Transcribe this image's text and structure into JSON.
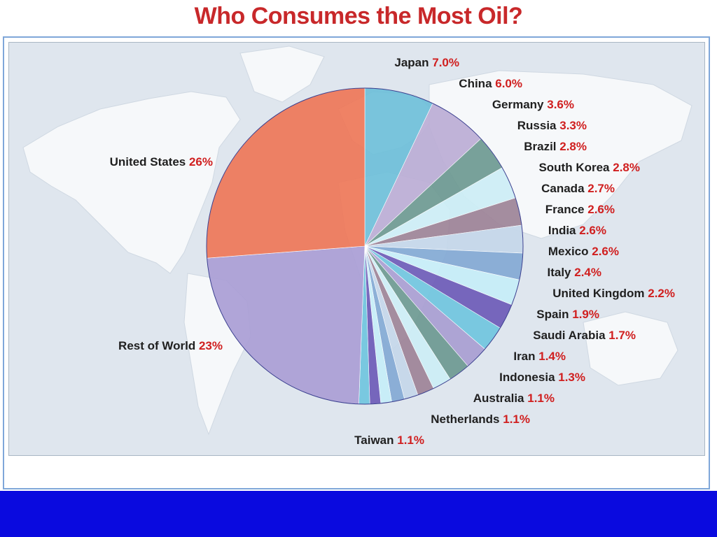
{
  "title": "Who Consumes the Most Oil?",
  "colors": {
    "title": "#c8282a",
    "map_background": "#dfe6ee",
    "land": "#f4f6f8",
    "frame_border": "#7fa7d9",
    "footer_band": "#0a0adf",
    "label_name": "#1f1f1f",
    "label_value": "#d01f1f"
  },
  "chart_data": {
    "type": "pie",
    "title": "Who Consumes the Most Oil?",
    "legend": "none (slices labelled directly)",
    "background": "world map",
    "slices": [
      {
        "label": "Japan",
        "value": 7.0,
        "display": "7.0%",
        "color": "#6fc0da"
      },
      {
        "label": "China",
        "value": 6.0,
        "display": "6.0%",
        "color": "#bcaed6"
      },
      {
        "label": "Germany",
        "value": 3.6,
        "display": "3.6%",
        "color": "#6e9a92"
      },
      {
        "label": "Russia",
        "value": 3.3,
        "display": "3.3%",
        "color": "#cdeef6"
      },
      {
        "label": "Brazil",
        "value": 2.8,
        "display": "2.8%",
        "color": "#9e8498"
      },
      {
        "label": "South Korea",
        "value": 2.8,
        "display": "2.8%",
        "color": "#c5d7ea"
      },
      {
        "label": "Canada",
        "value": 2.7,
        "display": "2.7%",
        "color": "#84aad5"
      },
      {
        "label": "France",
        "value": 2.6,
        "display": "2.6%",
        "color": "#c7eef8"
      },
      {
        "label": "India",
        "value": 2.6,
        "display": "2.6%",
        "color": "#6e5cb8"
      },
      {
        "label": "Mexico",
        "value": 2.6,
        "display": "2.6%",
        "color": "#71c6df"
      },
      {
        "label": "Italy",
        "value": 2.4,
        "display": "2.4%",
        "color": "#a99fd2"
      },
      {
        "label": "United Kingdom",
        "value": 2.2,
        "display": "2.2%",
        "color": "#6e9a92"
      },
      {
        "label": "Spain",
        "value": 1.9,
        "display": "1.9%",
        "color": "#cdeef6"
      },
      {
        "label": "Saudi Arabia",
        "value": 1.7,
        "display": "1.7%",
        "color": "#9e8498"
      },
      {
        "label": "Iran",
        "value": 1.4,
        "display": "1.4%",
        "color": "#c5d7ea"
      },
      {
        "label": "Indonesia",
        "value": 1.3,
        "display": "1.3%",
        "color": "#84aad5"
      },
      {
        "label": "Australia",
        "value": 1.1,
        "display": "1.1%",
        "color": "#c7eef8"
      },
      {
        "label": "Netherlands",
        "value": 1.1,
        "display": "1.1%",
        "color": "#6e5cb8"
      },
      {
        "label": "Taiwan",
        "value": 1.1,
        "display": "1.1%",
        "color": "#71c6df"
      },
      {
        "label": "Rest of World",
        "value": 23,
        "display": "23%",
        "color": "#ab9fd6"
      },
      {
        "label": "United States",
        "value": 26,
        "display": "26%",
        "color": "#ef7859"
      }
    ]
  }
}
